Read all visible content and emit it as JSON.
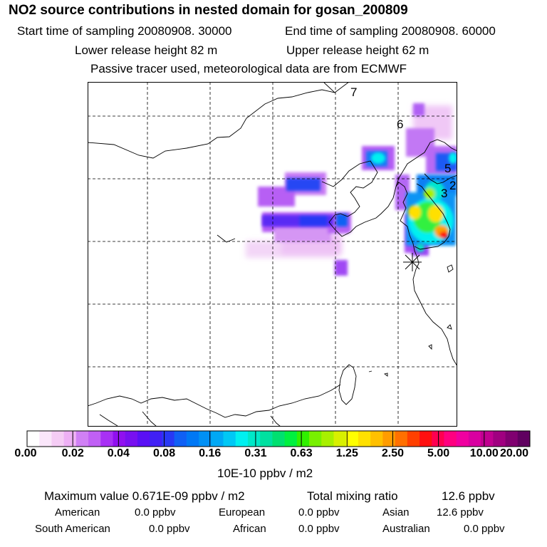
{
  "title": "NO2 source contributions in nested domain for gosan_200809",
  "header": {
    "start_label": "Start time of sampling 20080908. 30000",
    "end_label": "End time of sampling 20080908. 60000",
    "lower_label": "Lower release height   82 m",
    "upper_label": "Upper release height   62 m",
    "tracer_note": "Passive tracer used, meteorological data are from ECMWF"
  },
  "map": {
    "region_labels": [
      "7",
      "6",
      "5",
      "2",
      "3"
    ],
    "receptor": "gosan",
    "receptor_marker": "asterisk"
  },
  "colorbar": {
    "ticks": [
      "0.00",
      "0.02",
      "0.04",
      "0.08",
      "0.16",
      "0.31",
      "0.63",
      "1.25",
      "2.50",
      "5.00",
      "10.00",
      "20.00"
    ],
    "unit_label": "10E-10 ppbv / m2",
    "colors": [
      "#ffffff",
      "#fae6fa",
      "#f5ccf5",
      "#eeb0f5",
      "#d080f5",
      "#c060f5",
      "#a830f5",
      "#9010f0",
      "#7810f0",
      "#5a10f5",
      "#4020f5",
      "#2838f5",
      "#1060f5",
      "#0078f5",
      "#0090f5",
      "#00a8f5",
      "#00c8f5",
      "#00f0f0",
      "#00e8c8",
      "#00e0a0",
      "#00e070",
      "#00f040",
      "#30f000",
      "#78f000",
      "#a8f000",
      "#d8f000",
      "#ffff00",
      "#ffe000",
      "#ffc000",
      "#ff9c00",
      "#ff7000",
      "#ff4000",
      "#ff1010",
      "#ff0050",
      "#ff0080",
      "#f000a0",
      "#d800a0",
      "#c00090",
      "#a00080",
      "#800070",
      "#600060"
    ]
  },
  "summary": {
    "max_label": "Maximum value  0.671E-09 ppbv / m2",
    "total_label": "Total mixing ratio",
    "total_value": "12.6 ppbv",
    "american_label": "American",
    "american_value": "0.0 ppbv",
    "european_label": "European",
    "european_value": "0.0 ppbv",
    "asian_label": "Asian",
    "asian_value": "12.6 ppbv",
    "southam_label": "South American",
    "southam_value": "0.0 ppbv",
    "african_label": "African",
    "african_value": "0.0 ppbv",
    "australian_label": "Australian",
    "australian_value": "0.0 ppbv"
  }
}
